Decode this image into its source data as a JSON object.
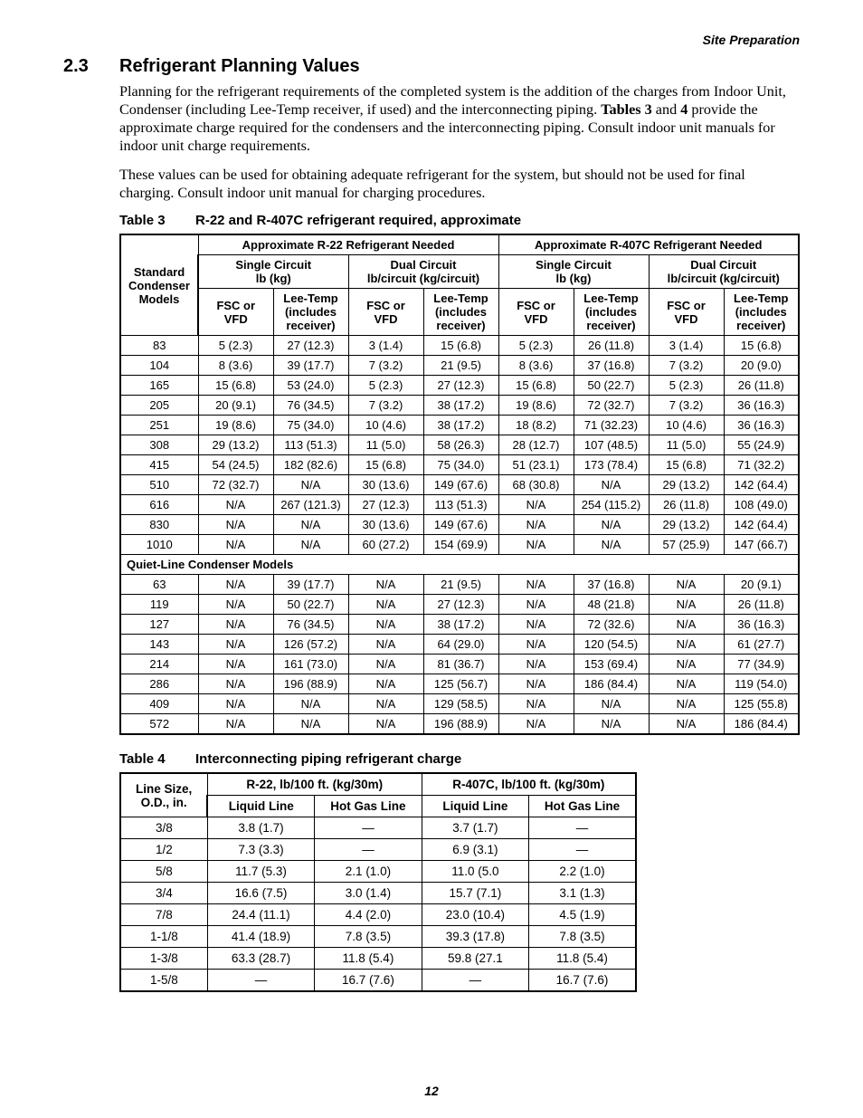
{
  "page": {
    "running_head": "Site Preparation",
    "page_number": "12"
  },
  "section": {
    "number": "2.3",
    "title": "Refrigerant Planning Values",
    "para1_pre": "Planning for the refrigerant requirements of the completed system is the addition of the charges from Indoor Unit, Condenser (including Lee-Temp receiver, if used) and the interconnecting piping. ",
    "para1_bold1": "Tables 3",
    "para1_mid": " and ",
    "para1_bold2": "4",
    "para1_post": " provide the approximate charge required for the condensers and the interconnecting piping. Consult indoor unit manuals for indoor unit charge requirements.",
    "para2": "These values can be used for obtaining adequate refrigerant for the system, but should not be used for final charging. Consult indoor unit manual for charging procedures."
  },
  "table3": {
    "cap_label": "Table 3",
    "cap_title": "R-22 and R-407C refrigerant required, approximate",
    "top_headers": {
      "blank": "",
      "r22": "Approximate R-22 Refrigerant Needed",
      "r407c": "Approximate R-407C Refrigerant Needed"
    },
    "mid_headers": {
      "single": "Single Circuit",
      "single_unit": "lb (kg)",
      "dual": "Dual Circuit",
      "dual_unit": "lb/circuit (kg/circuit)"
    },
    "col_headers": {
      "models": "Standard\nCondenser\nModels",
      "fsc": "FSC or\nVFD",
      "leetemp": "Lee-Temp\n(includes\nreceiver)"
    },
    "rows_std": [
      [
        "83",
        "5 (2.3)",
        "27 (12.3)",
        "3 (1.4)",
        "15 (6.8)",
        "5 (2.3)",
        "26 (11.8)",
        "3 (1.4)",
        "15 (6.8)"
      ],
      [
        "104",
        "8 (3.6)",
        "39 (17.7)",
        "7 (3.2)",
        "21 (9.5)",
        "8 (3.6)",
        "37 (16.8)",
        "7 (3.2)",
        "20 (9.0)"
      ],
      [
        "165",
        "15 (6.8)",
        "53 (24.0)",
        "5 (2.3)",
        "27 (12.3)",
        "15 (6.8)",
        "50 (22.7)",
        "5 (2.3)",
        "26 (11.8)"
      ],
      [
        "205",
        "20 (9.1)",
        "76 (34.5)",
        "7 (3.2)",
        "38 (17.2)",
        "19 (8.6)",
        "72 (32.7)",
        "7 (3.2)",
        "36 (16.3)"
      ],
      [
        "251",
        "19 (8.6)",
        "75 (34.0)",
        "10 (4.6)",
        "38 (17.2)",
        "18 (8.2)",
        "71 (32.23)",
        "10 (4.6)",
        "36 (16.3)"
      ],
      [
        "308",
        "29 (13.2)",
        "113 (51.3)",
        "11 (5.0)",
        "58 (26.3)",
        "28 (12.7)",
        "107 (48.5)",
        "11 (5.0)",
        "55 (24.9)"
      ],
      [
        "415",
        "54 (24.5)",
        "182 (82.6)",
        "15 (6.8)",
        "75 (34.0)",
        "51 (23.1)",
        "173 (78.4)",
        "15 (6.8)",
        "71 (32.2)"
      ],
      [
        "510",
        "72 (32.7)",
        "N/A",
        "30 (13.6)",
        "149 (67.6)",
        "68 (30.8)",
        "N/A",
        "29 (13.2)",
        "142 (64.4)"
      ],
      [
        "616",
        "N/A",
        "267 (121.3)",
        "27 (12.3)",
        "113 (51.3)",
        "N/A",
        "254 (115.2)",
        "26 (11.8)",
        "108 (49.0)"
      ],
      [
        "830",
        "N/A",
        "N/A",
        "30 (13.6)",
        "149 (67.6)",
        "N/A",
        "N/A",
        "29 (13.2)",
        "142 (64.4)"
      ],
      [
        "1010",
        "N/A",
        "N/A",
        "60 (27.2)",
        "154 (69.9)",
        "N/A",
        "N/A",
        "57 (25.9)",
        "147 (66.7)"
      ]
    ],
    "section_label": "Quiet-Line Condenser Models",
    "rows_quiet": [
      [
        "63",
        "N/A",
        "39 (17.7)",
        "N/A",
        "21 (9.5)",
        "N/A",
        "37 (16.8)",
        "N/A",
        "20 (9.1)"
      ],
      [
        "119",
        "N/A",
        "50 (22.7)",
        "N/A",
        "27 (12.3)",
        "N/A",
        "48 (21.8)",
        "N/A",
        "26 (11.8)"
      ],
      [
        "127",
        "N/A",
        "76 (34.5)",
        "N/A",
        "38 (17.2)",
        "N/A",
        "72 (32.6)",
        "N/A",
        "36 (16.3)"
      ],
      [
        "143",
        "N/A",
        "126 (57.2)",
        "N/A",
        "64 (29.0)",
        "N/A",
        "120 (54.5)",
        "N/A",
        "61 (27.7)"
      ],
      [
        "214",
        "N/A",
        "161 (73.0)",
        "N/A",
        "81 (36.7)",
        "N/A",
        "153 (69.4)",
        "N/A",
        "77 (34.9)"
      ],
      [
        "286",
        "N/A",
        "196 (88.9)",
        "N/A",
        "125 (56.7)",
        "N/A",
        "186 (84.4)",
        "N/A",
        "119 (54.0)"
      ],
      [
        "409",
        "N/A",
        "N/A",
        "N/A",
        "129 (58.5)",
        "N/A",
        "N/A",
        "N/A",
        "125 (55.8)"
      ],
      [
        "572",
        "N/A",
        "N/A",
        "N/A",
        "196 (88.9)",
        "N/A",
        "N/A",
        "N/A",
        "186 (84.4)"
      ]
    ]
  },
  "table4": {
    "cap_label": "Table 4",
    "cap_title": "Interconnecting piping refrigerant charge",
    "headers": {
      "line_size": "Line Size,\nO.D., in.",
      "r22": "R-22, lb/100 ft. (kg/30m)",
      "r407c": "R-407C, lb/100 ft. (kg/30m)",
      "liquid": "Liquid Line",
      "hotgas": "Hot Gas Line"
    },
    "rows": [
      [
        "3/8",
        "3.8 (1.7)",
        "—",
        "3.7 (1.7)",
        "—"
      ],
      [
        "1/2",
        "7.3 (3.3)",
        "—",
        "6.9 (3.1)",
        "—"
      ],
      [
        "5/8",
        "11.7 (5.3)",
        "2.1 (1.0)",
        "11.0 (5.0",
        "2.2 (1.0)"
      ],
      [
        "3/4",
        "16.6 (7.5)",
        "3.0 (1.4)",
        "15.7 (7.1)",
        "3.1 (1.3)"
      ],
      [
        "7/8",
        "24.4 (11.1)",
        "4.4 (2.0)",
        "23.0 (10.4)",
        "4.5 (1.9)"
      ],
      [
        "1-1/8",
        "41.4 (18.9)",
        "7.8 (3.5)",
        "39.3 (17.8)",
        "7.8 (3.5)"
      ],
      [
        "1-3/8",
        "63.3 (28.7)",
        "11.8 (5.4)",
        "59.8 (27.1",
        "11.8 (5.4)"
      ],
      [
        "1-5/8",
        "—",
        "16.7 (7.6)",
        "—",
        "16.7 (7.6)"
      ]
    ]
  }
}
